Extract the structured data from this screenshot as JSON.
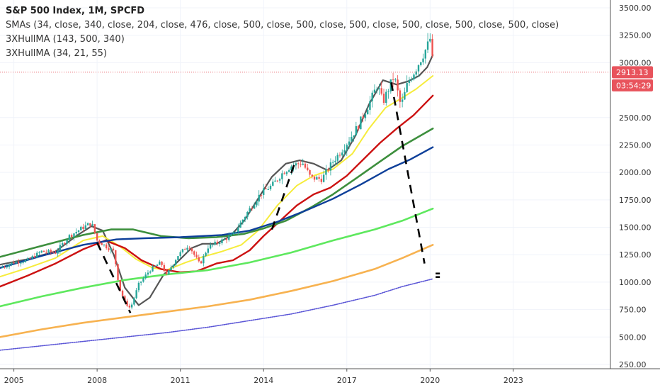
{
  "header": {
    "title": "S&P 500 Index, 1M, SPCFD",
    "smas": "SMAs (34, close, 340, close, 204, close, 476, close, 500, close, 500, close, 500, close, 500, close, 500, close, 500, close)",
    "hull1": "3XHullMA (143, 500, 340)",
    "hull2": "3XHullMA (34, 21, 55)"
  },
  "price_tags": {
    "last_price": "2913.13",
    "countdown": "03:54:29"
  },
  "colors": {
    "up": "#26a69a",
    "down": "#ef5350",
    "price_tag": "#e8535c",
    "hma_gray": "#555555",
    "sma_yellow": "#f6ec3c",
    "sma_red": "#cc1111",
    "sma_darkgreen": "#3d8f3d",
    "sma_navy": "#0d3f99",
    "sma_lime": "#5ee85e",
    "sma_orange": "#f7b250",
    "sma_blue_dotted": "#5a55d6",
    "dashed": "#000000"
  },
  "chart_data": {
    "type": "line",
    "ylim": [
      200,
      3500
    ],
    "xlim": [
      2004.5,
      2026.5
    ],
    "yticks": [
      "3500.00",
      "3250.00",
      "3000.00",
      "2500.00",
      "2250.00",
      "2000.00",
      "1750.00",
      "1500.00",
      "1250.00",
      "1000.00",
      "750.00",
      "500.00",
      "250.00"
    ],
    "ytick_values": [
      3500,
      3250,
      3000,
      2500,
      2250,
      2000,
      1750,
      1500,
      1250,
      1000,
      750,
      500,
      250
    ],
    "xticks": [
      "2005",
      "2008",
      "2011",
      "2014",
      "2017",
      "2020",
      "2023"
    ],
    "xtick_values": [
      2005,
      2008,
      2011,
      2014,
      2017,
      2020,
      2023
    ],
    "last_price": 2913.13,
    "price_anchors": [
      [
        2004.5,
        1130
      ],
      [
        2005.0,
        1180
      ],
      [
        2005.5,
        1200
      ],
      [
        2006.0,
        1280
      ],
      [
        2006.5,
        1270
      ],
      [
        2007.0,
        1420
      ],
      [
        2007.5,
        1500
      ],
      [
        2007.8,
        1540
      ],
      [
        2008.0,
        1380
      ],
      [
        2008.3,
        1330
      ],
      [
        2008.6,
        1280
      ],
      [
        2008.8,
        950
      ],
      [
        2009.0,
        820
      ],
      [
        2009.2,
        760
      ],
      [
        2009.5,
        980
      ],
      [
        2009.9,
        1110
      ],
      [
        2010.3,
        1180
      ],
      [
        2010.5,
        1060
      ],
      [
        2010.9,
        1240
      ],
      [
        2011.3,
        1340
      ],
      [
        2011.7,
        1160
      ],
      [
        2012.0,
        1320
      ],
      [
        2012.5,
        1380
      ],
      [
        2012.9,
        1430
      ],
      [
        2013.4,
        1630
      ],
      [
        2013.9,
        1810
      ],
      [
        2014.3,
        1880
      ],
      [
        2014.7,
        2000
      ],
      [
        2015.0,
        2060
      ],
      [
        2015.4,
        2090
      ],
      [
        2015.7,
        1950
      ],
      [
        2016.1,
        1940
      ],
      [
        2016.5,
        2100
      ],
      [
        2016.9,
        2230
      ],
      [
        2017.4,
        2420
      ],
      [
        2017.9,
        2680
      ],
      [
        2018.1,
        2800
      ],
      [
        2018.3,
        2640
      ],
      [
        2018.7,
        2880
      ],
      [
        2018.95,
        2600
      ],
      [
        2019.2,
        2820
      ],
      [
        2019.5,
        2950
      ],
      [
        2019.9,
        3150
      ],
      [
        2020.05,
        3250
      ],
      [
        2020.1,
        2913.13
      ]
    ],
    "series": [
      {
        "key": "hma_gray",
        "points": [
          [
            2004.5,
            1160
          ],
          [
            2005.5,
            1210
          ],
          [
            2006.5,
            1280
          ],
          [
            2007.3,
            1430
          ],
          [
            2007.8,
            1510
          ],
          [
            2008.2,
            1470
          ],
          [
            2008.6,
            1250
          ],
          [
            2009.0,
            950
          ],
          [
            2009.5,
            790
          ],
          [
            2009.9,
            860
          ],
          [
            2010.4,
            1070
          ],
          [
            2010.8,
            1160
          ],
          [
            2011.4,
            1310
          ],
          [
            2011.8,
            1350
          ],
          [
            2012.3,
            1350
          ],
          [
            2012.8,
            1420
          ],
          [
            2013.3,
            1560
          ],
          [
            2013.8,
            1760
          ],
          [
            2014.3,
            1960
          ],
          [
            2014.8,
            2080
          ],
          [
            2015.3,
            2110
          ],
          [
            2015.8,
            2080
          ],
          [
            2016.3,
            2020
          ],
          [
            2016.8,
            2110
          ],
          [
            2017.3,
            2330
          ],
          [
            2017.8,
            2620
          ],
          [
            2018.3,
            2840
          ],
          [
            2018.8,
            2800
          ],
          [
            2019.2,
            2830
          ],
          [
            2019.6,
            2880
          ],
          [
            2019.9,
            2960
          ],
          [
            2020.1,
            3070
          ]
        ]
      },
      {
        "key": "sma_yellow",
        "points": [
          [
            2004.5,
            1050
          ],
          [
            2005.5,
            1130
          ],
          [
            2006.5,
            1220
          ],
          [
            2007.5,
            1380
          ],
          [
            2008.2,
            1420
          ],
          [
            2008.8,
            1330
          ],
          [
            2009.4,
            1210
          ],
          [
            2010.0,
            1130
          ],
          [
            2010.5,
            1110
          ],
          [
            2011.2,
            1180
          ],
          [
            2011.8,
            1230
          ],
          [
            2012.5,
            1280
          ],
          [
            2013.2,
            1340
          ],
          [
            2013.8,
            1470
          ],
          [
            2014.5,
            1700
          ],
          [
            2015.2,
            1880
          ],
          [
            2015.8,
            1970
          ],
          [
            2016.5,
            2030
          ],
          [
            2017.2,
            2170
          ],
          [
            2017.8,
            2400
          ],
          [
            2018.4,
            2590
          ],
          [
            2019.0,
            2680
          ],
          [
            2019.5,
            2760
          ],
          [
            2020.1,
            2880
          ]
        ]
      },
      {
        "key": "sma_red",
        "points": [
          [
            2004.5,
            960
          ],
          [
            2005.5,
            1060
          ],
          [
            2006.5,
            1170
          ],
          [
            2007.5,
            1300
          ],
          [
            2008.3,
            1380
          ],
          [
            2009.0,
            1310
          ],
          [
            2009.6,
            1200
          ],
          [
            2010.3,
            1120
          ],
          [
            2011.0,
            1090
          ],
          [
            2011.6,
            1100
          ],
          [
            2012.3,
            1170
          ],
          [
            2012.9,
            1200
          ],
          [
            2013.5,
            1290
          ],
          [
            2014.0,
            1420
          ],
          [
            2014.6,
            1560
          ],
          [
            2015.2,
            1700
          ],
          [
            2015.8,
            1800
          ],
          [
            2016.4,
            1860
          ],
          [
            2017.0,
            1970
          ],
          [
            2017.6,
            2120
          ],
          [
            2018.2,
            2270
          ],
          [
            2018.8,
            2400
          ],
          [
            2019.4,
            2520
          ],
          [
            2020.1,
            2700
          ]
        ]
      },
      {
        "key": "sma_darkgreen",
        "points": [
          [
            2004.5,
            1230
          ],
          [
            2006.0,
            1330
          ],
          [
            2007.5,
            1430
          ],
          [
            2008.5,
            1480
          ],
          [
            2009.3,
            1480
          ],
          [
            2010.3,
            1420
          ],
          [
            2011.3,
            1400
          ],
          [
            2012.3,
            1410
          ],
          [
            2013.3,
            1440
          ],
          [
            2014.0,
            1490
          ],
          [
            2014.8,
            1560
          ],
          [
            2015.7,
            1680
          ],
          [
            2016.5,
            1800
          ],
          [
            2017.3,
            1940
          ],
          [
            2018.2,
            2100
          ],
          [
            2019.0,
            2240
          ],
          [
            2020.1,
            2400
          ]
        ]
      },
      {
        "key": "sma_navy",
        "points": [
          [
            2004.5,
            1130
          ],
          [
            2006.0,
            1240
          ],
          [
            2007.5,
            1340
          ],
          [
            2008.7,
            1390
          ],
          [
            2009.7,
            1400
          ],
          [
            2011.0,
            1410
          ],
          [
            2012.5,
            1430
          ],
          [
            2013.5,
            1470
          ],
          [
            2014.5,
            1550
          ],
          [
            2015.5,
            1650
          ],
          [
            2016.5,
            1760
          ],
          [
            2017.5,
            1890
          ],
          [
            2018.5,
            2030
          ],
          [
            2019.3,
            2120
          ],
          [
            2020.1,
            2230
          ]
        ]
      },
      {
        "key": "sma_lime",
        "points": [
          [
            2004.5,
            780
          ],
          [
            2006.0,
            870
          ],
          [
            2007.5,
            950
          ],
          [
            2009.0,
            1020
          ],
          [
            2010.5,
            1070
          ],
          [
            2012.0,
            1110
          ],
          [
            2013.5,
            1180
          ],
          [
            2015.0,
            1270
          ],
          [
            2016.5,
            1380
          ],
          [
            2018.0,
            1480
          ],
          [
            2019.0,
            1560
          ],
          [
            2020.1,
            1670
          ]
        ]
      },
      {
        "key": "sma_orange",
        "points": [
          [
            2004.5,
            500
          ],
          [
            2006.0,
            570
          ],
          [
            2007.5,
            630
          ],
          [
            2009.0,
            680
          ],
          [
            2010.5,
            730
          ],
          [
            2012.0,
            780
          ],
          [
            2013.5,
            840
          ],
          [
            2015.0,
            920
          ],
          [
            2016.5,
            1010
          ],
          [
            2018.0,
            1120
          ],
          [
            2019.0,
            1220
          ],
          [
            2020.1,
            1340
          ]
        ]
      },
      {
        "key": "sma_blue_dotted",
        "points": [
          [
            2004.5,
            380
          ],
          [
            2006.0,
            420
          ],
          [
            2007.5,
            460
          ],
          [
            2009.0,
            500
          ],
          [
            2010.5,
            540
          ],
          [
            2012.0,
            590
          ],
          [
            2013.5,
            650
          ],
          [
            2015.0,
            710
          ],
          [
            2016.5,
            790
          ],
          [
            2018.0,
            880
          ],
          [
            2019.0,
            960
          ],
          [
            2020.1,
            1030
          ]
        ]
      }
    ],
    "dashed_lines": [
      [
        [
          2008.0,
          1360
        ],
        [
          2009.2,
          720
        ]
      ],
      [
        [
          2014.3,
          1480
        ],
        [
          2015.1,
          2070
        ]
      ],
      [
        [
          2018.6,
          2820
        ],
        [
          2019.8,
          1170
        ]
      ]
    ],
    "small_marks": [
      [
        2020.2,
        1100
      ]
    ]
  }
}
